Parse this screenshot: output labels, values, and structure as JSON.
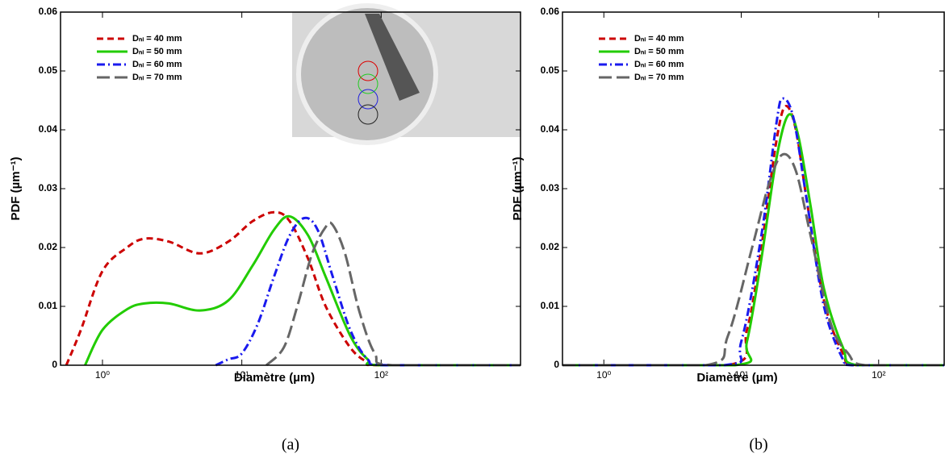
{
  "chart_data": [
    {
      "type": "line",
      "caption": "(a)",
      "xlabel": "Diamètre (µm)",
      "ylabel": "PDF (µm⁻¹)",
      "xscale": "log",
      "xlim": [
        0.5,
        1000
      ],
      "xticks": [
        {
          "value": 1,
          "label": "10⁰"
        },
        {
          "value": 10,
          "label": "10¹"
        },
        {
          "value": 100,
          "label": "10²"
        }
      ],
      "ylim": [
        0,
        0.06
      ],
      "yticks": [
        0,
        0.01,
        0.02,
        0.03,
        0.04,
        0.05,
        0.06
      ],
      "legend": "upper left",
      "series": [
        {
          "name": "Dₙₗ = 40 mm",
          "color": "#cc0000",
          "dash": "8,5",
          "x": [
            0.55,
            0.7,
            1,
            1.5,
            2,
            3,
            5,
            8,
            12,
            17,
            22,
            30,
            40,
            60,
            80,
            100,
            1000
          ],
          "values": [
            0,
            0.006,
            0.016,
            0.02,
            0.0215,
            0.021,
            0.019,
            0.021,
            0.0245,
            0.026,
            0.0245,
            0.018,
            0.01,
            0.003,
            0.0005,
            0,
            0
          ]
        },
        {
          "name": "Dₙₗ = 50 mm",
          "color": "#22cc00",
          "dash": "none",
          "x": [
            0.75,
            1,
            1.5,
            2,
            3,
            5,
            8,
            12,
            17,
            22,
            30,
            40,
            60,
            80,
            100,
            1000
          ],
          "values": [
            0,
            0.006,
            0.0095,
            0.0105,
            0.0105,
            0.0093,
            0.011,
            0.017,
            0.023,
            0.0253,
            0.022,
            0.015,
            0.005,
            0.001,
            0,
            0
          ]
        },
        {
          "name": "Dₙₗ = 60 mm",
          "color": "#1a1aee",
          "dash": "10,4,2,4",
          "x": [
            6.5,
            8,
            10,
            13,
            17,
            22,
            28,
            35,
            45,
            60,
            80,
            110,
            1000
          ],
          "values": [
            0,
            0.001,
            0.002,
            0.007,
            0.015,
            0.022,
            0.025,
            0.023,
            0.015,
            0.006,
            0.001,
            0,
            0
          ]
        },
        {
          "name": "Dₙₗ = 70 mm",
          "color": "#666666",
          "dash": "16,6",
          "x": [
            15,
            20,
            25,
            32,
            40,
            45,
            55,
            70,
            90,
            120,
            1000
          ],
          "values": [
            0,
            0.003,
            0.01,
            0.019,
            0.0235,
            0.0238,
            0.019,
            0.009,
            0.002,
            0,
            0
          ]
        }
      ]
    },
    {
      "type": "line",
      "caption": "(b)",
      "xlabel": "Diamètre (µm)",
      "ylabel": "PDF (µm⁻¹)",
      "xscale": "log",
      "xlim": [
        0.5,
        300
      ],
      "xticks": [
        {
          "value": 1,
          "label": "10⁰"
        },
        {
          "value": 10,
          "label": "10¹"
        },
        {
          "value": 100,
          "label": "10²"
        }
      ],
      "ylim": [
        0,
        0.06
      ],
      "yticks": [
        0,
        0.01,
        0.02,
        0.03,
        0.04,
        0.05,
        0.06
      ],
      "legend": "upper left",
      "series": [
        {
          "name": "Dₙₗ = 40 mm",
          "color": "#cc0000",
          "dash": "8,5",
          "x": [
            0.5,
            8,
            11,
            14,
            18,
            21,
            25,
            30,
            40,
            55,
            70,
            300
          ],
          "values": [
            0,
            0,
            0.006,
            0.02,
            0.038,
            0.044,
            0.04,
            0.028,
            0.011,
            0.002,
            0,
            0
          ]
        },
        {
          "name": "Dₙₗ = 50 mm",
          "color": "#22cc00",
          "dash": "none",
          "x": [
            0.5,
            9,
            11,
            14,
            18,
            22,
            26,
            32,
            40,
            55,
            70,
            300
          ],
          "values": [
            0,
            0,
            0.004,
            0.018,
            0.035,
            0.0425,
            0.039,
            0.027,
            0.013,
            0.003,
            0,
            0
          ]
        },
        {
          "name": "Dₙₗ = 60 mm",
          "color": "#1a1aee",
          "dash": "10,4,2,4",
          "x": [
            0.5,
            7.5,
            10,
            14,
            18,
            20,
            24,
            30,
            40,
            55,
            65,
            300
          ],
          "values": [
            0,
            0,
            0.004,
            0.022,
            0.041,
            0.0453,
            0.042,
            0.028,
            0.01,
            0.001,
            0,
            0
          ]
        },
        {
          "name": "Dₙₗ = 70 mm",
          "color": "#666666",
          "dash": "16,6",
          "x": [
            0.5,
            5.5,
            8,
            12,
            16,
            20,
            25,
            32,
            45,
            60,
            80,
            300
          ],
          "values": [
            0,
            0,
            0.005,
            0.02,
            0.031,
            0.0358,
            0.033,
            0.022,
            0.007,
            0.002,
            0,
            0
          ]
        }
      ]
    }
  ]
}
